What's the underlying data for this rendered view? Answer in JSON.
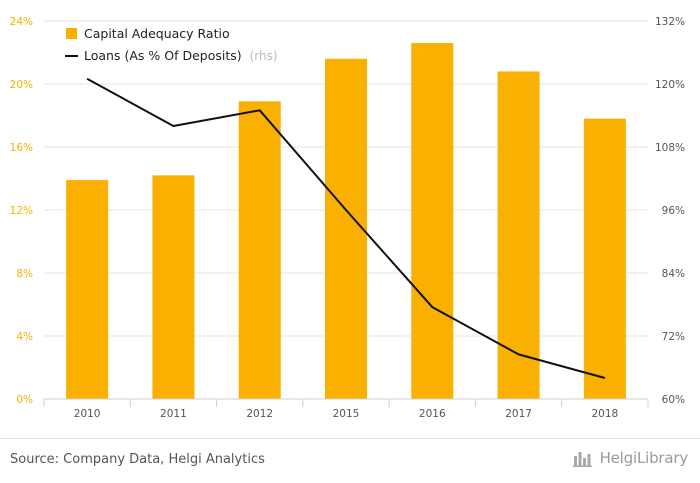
{
  "chart_data": {
    "type": "bar",
    "categories": [
      "2010",
      "2011",
      "2012",
      "2015",
      "2016",
      "2017",
      "2018"
    ],
    "series": [
      {
        "name": "Capital Adequacy Ratio",
        "type": "bar",
        "axis": "left",
        "color": "#f9b000",
        "values": [
          13.9,
          14.2,
          18.9,
          21.6,
          22.6,
          20.8,
          17.8
        ]
      },
      {
        "name": "Loans (As % Of Deposits)",
        "legend_suffix": "(rhs)",
        "type": "line",
        "axis": "right",
        "color": "#111111",
        "values": [
          121.0,
          112.0,
          115.0,
          96.0,
          77.5,
          68.5,
          64.0
        ]
      }
    ],
    "y_left": {
      "min": 0,
      "max": 24,
      "ticks": [
        0,
        4,
        8,
        12,
        16,
        20,
        24
      ],
      "tick_labels": [
        "0%",
        "4%",
        "8%",
        "12%",
        "16%",
        "20%",
        "24%"
      ],
      "tick_color": "#f9b000"
    },
    "y_right": {
      "min": 60,
      "max": 132,
      "ticks": [
        60,
        72,
        84,
        96,
        108,
        120,
        132
      ],
      "tick_labels": [
        "60%",
        "72%",
        "84%",
        "96%",
        "108%",
        "120%",
        "132%"
      ]
    },
    "grid": true,
    "legend_position": "top-left"
  },
  "footer": {
    "source": "Source: Company Data, Helgi Analytics",
    "brand": "HelgiLibrary"
  }
}
